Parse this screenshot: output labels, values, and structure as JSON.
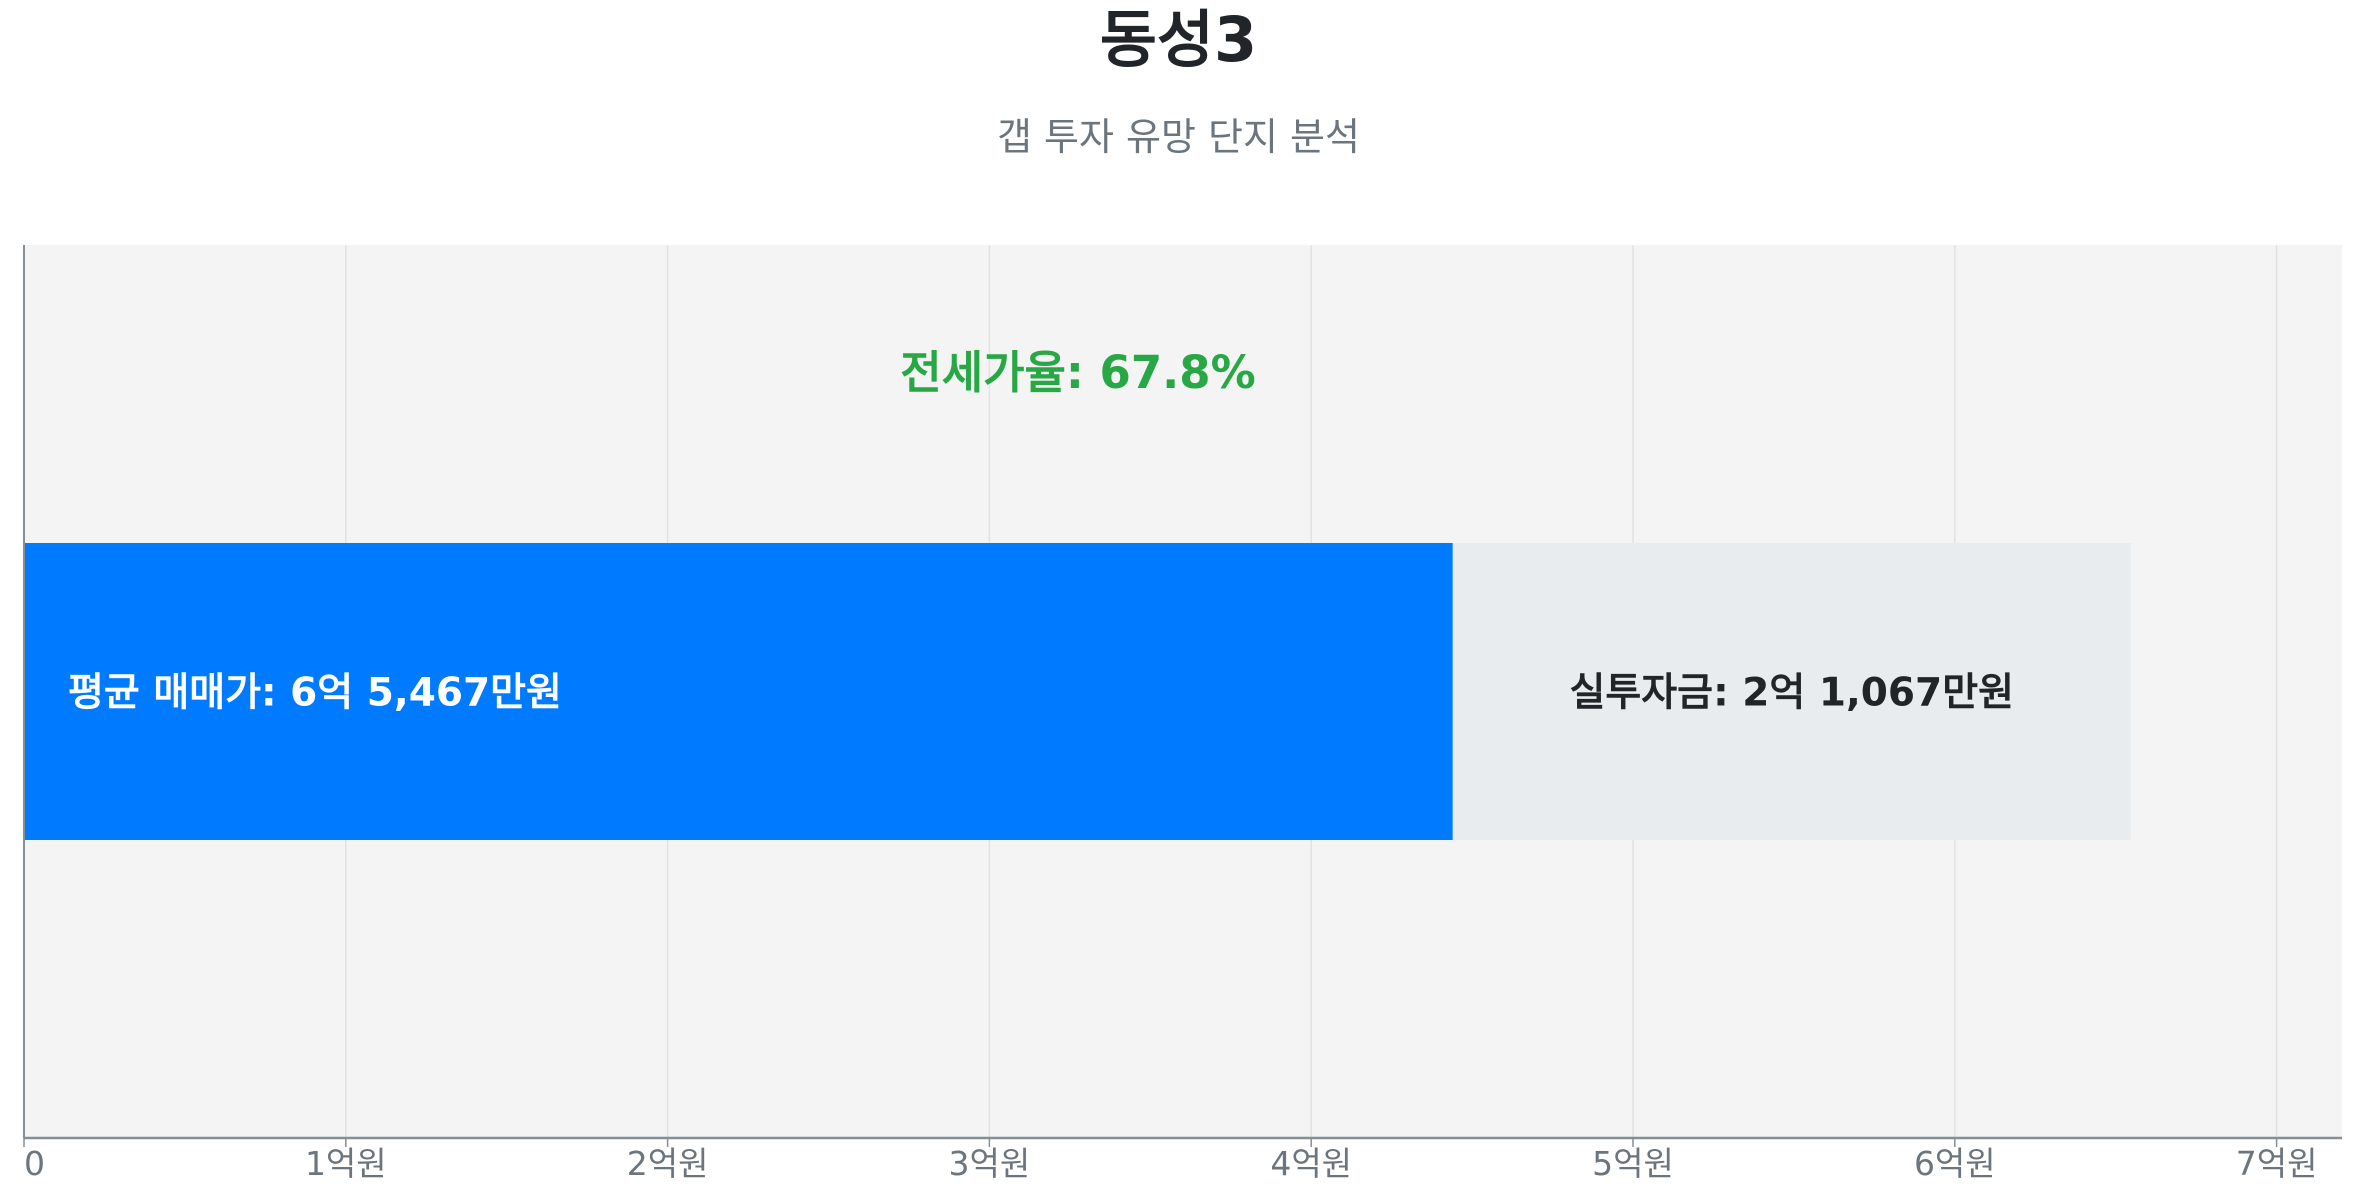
{
  "title": "동성3",
  "subtitle": "갭 투자 유망 단지 분석",
  "chart_data": {
    "type": "bar",
    "orientation": "horizontal",
    "stacked": true,
    "xlim": [
      0,
      7.2
    ],
    "x_unit": "억원",
    "ticks": [
      0,
      1,
      2,
      3,
      4,
      5,
      6,
      7
    ],
    "tick_labels": [
      "0",
      "1억원",
      "2억원",
      "3억원",
      "4억원",
      "5억원",
      "6억원",
      "7억원"
    ],
    "grid": true,
    "segments": [
      {
        "label": "평균 매매가: 6억 5,467만원",
        "start": 0,
        "end": 4.44,
        "color": "#007bff",
        "text_color": "#ffffff"
      },
      {
        "label": "실투자금: 2억 1,067만원",
        "start": 4.44,
        "end": 6.5467,
        "color": "#e9ecef",
        "text_color": "#212529"
      }
    ],
    "annotation": {
      "text": "전세가율: 67.8%",
      "color": "#28a745"
    },
    "colors": {
      "plot_bg": "#f4f4f4",
      "grid": "#e2e2e2",
      "axis": "#868e96",
      "tick_text": "#6c757d"
    }
  }
}
